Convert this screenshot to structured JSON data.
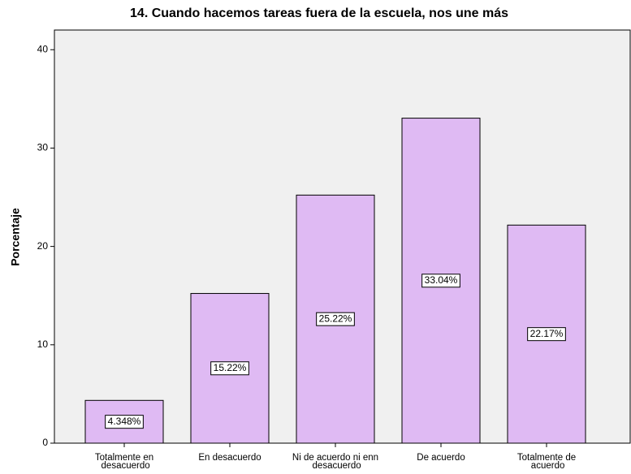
{
  "chart_data": {
    "type": "bar",
    "title": "14. Cuando hacemos tareas fuera de la escuela, nos une más",
    "y_label": "Porcentaje",
    "categories": [
      "Totalmente en desacuerdo",
      "En desacuerdo",
      "Ni de acuerdo ni enn desacuerdo",
      "De acuerdo",
      "Totalmente de acuerdo"
    ],
    "values": [
      4.348,
      15.22,
      25.22,
      33.04,
      22.17
    ],
    "value_labels": [
      "4.348%",
      "15.22%",
      "25.22%",
      "33.04%",
      "22.17%"
    ],
    "color": "#dfbaf3",
    "ylim": [
      0,
      42
    ],
    "yticks": [
      0,
      10,
      20,
      30,
      40
    ],
    "grid": false
  }
}
